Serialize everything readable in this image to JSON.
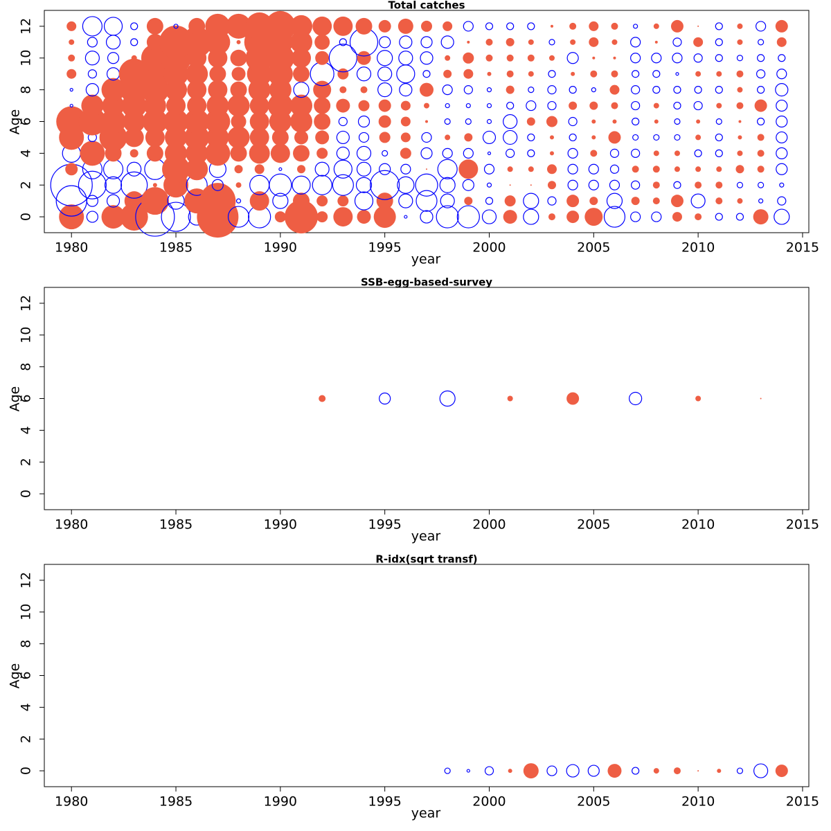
{
  "chart_data": [
    {
      "type": "bubble",
      "title": "Total catches",
      "xlabel": "year",
      "ylabel": "Age",
      "positive_color": "#ee5e44",
      "negative_color": "#0000ff",
      "xlim": [
        1978.7,
        2015.3
      ],
      "ylim": [
        -1,
        13
      ],
      "xticks": [
        1980,
        1985,
        1990,
        1995,
        2000,
        2005,
        2010,
        2015
      ],
      "yticks": [
        0,
        2,
        4,
        6,
        8,
        10,
        12
      ],
      "ages": [
        0,
        1,
        2,
        3,
        4,
        5,
        6,
        7,
        8,
        9,
        10,
        11,
        12
      ],
      "x": [
        1980,
        1981,
        1982,
        1983,
        1984,
        1985,
        1986,
        1987,
        1988,
        1989,
        1990,
        1991,
        1992,
        1993,
        1994,
        1995,
        1996,
        1997,
        1998,
        1999,
        2000,
        2001,
        2002,
        2003,
        2004,
        2005,
        2006,
        2007,
        2008,
        2009,
        2010,
        2011,
        2012,
        2013,
        2014
      ],
      "values": [
        [
          1.8,
          -2.2,
          -3.0,
          0.9,
          -1.3,
          1.8,
          2.2,
          -0.2,
          -0.2,
          0.7,
          0.5,
          0.4,
          0.7
        ],
        [
          -0.8,
          -0.8,
          -2.0,
          -1.4,
          1.8,
          -0.6,
          2.0,
          1.6,
          -0.9,
          -0.6,
          -1.0,
          -0.7,
          -1.4
        ],
        [
          1.7,
          -0.9,
          -1.2,
          -1.4,
          1.2,
          2.0,
          1.8,
          1.6,
          1.7,
          -0.9,
          -0.8,
          -1.0,
          -1.3
        ],
        [
          2.0,
          1.4,
          -1.9,
          -1.0,
          0.6,
          1.4,
          1.6,
          1.8,
          2.0,
          2.2,
          0.4,
          -0.5,
          -0.5
        ],
        [
          -2.8,
          2.0,
          0.3,
          -1.5,
          1.2,
          1.4,
          1.8,
          1.6,
          2.0,
          2.2,
          2.0,
          1.2,
          1.2
        ],
        [
          -2.1,
          -1.2,
          1.8,
          2.0,
          1.6,
          1.6,
          1.8,
          1.4,
          1.6,
          1.8,
          2.2,
          2.4,
          -0.3
        ],
        [
          -1.2,
          1.8,
          -1.5,
          1.6,
          1.6,
          1.8,
          1.8,
          1.4,
          1.4,
          1.6,
          1.4,
          2.2,
          1.2
        ],
        [
          3.0,
          2.6,
          -0.8,
          -1.2,
          1.8,
          1.6,
          1.8,
          1.6,
          1.4,
          1.2,
          1.4,
          1.8,
          1.8
        ],
        [
          -1.5,
          -0.3,
          0.4,
          0.6,
          1.2,
          1.6,
          1.1,
          1.6,
          1.2,
          1.0,
          1.2,
          0.3,
          1.8
        ],
        [
          -1.6,
          1.4,
          -1.4,
          0.7,
          1.5,
          1.4,
          1.4,
          1.4,
          1.6,
          1.8,
          2.0,
          2.2,
          2.0
        ],
        [
          0.8,
          -1.1,
          -1.6,
          -0.2,
          1.4,
          1.2,
          1.6,
          1.8,
          1.6,
          1.8,
          2.0,
          1.8,
          2.2
        ],
        [
          2.4,
          1.2,
          -1.3,
          0.6,
          1.2,
          1.0,
          1.6,
          1.6,
          -1.1,
          1.2,
          1.4,
          1.6,
          1.6
        ],
        [
          0.8,
          0.8,
          -1.4,
          -1.0,
          0.8,
          1.0,
          1.2,
          1.2,
          1.3,
          -1.7,
          1.0,
          1.1,
          1.4
        ],
        [
          1.4,
          0.8,
          -1.5,
          -1.3,
          -0.9,
          -0.9,
          -0.6,
          1.0,
          0.5,
          0.8,
          -2.0,
          -0.5,
          1.4
        ],
        [
          1.0,
          -1.3,
          -1.1,
          -1.0,
          -1.0,
          -0.7,
          -0.8,
          0.8,
          0.5,
          -1.0,
          1.0,
          -2.0,
          1.2
        ],
        [
          1.6,
          1.2,
          -2.1,
          -0.8,
          -0.4,
          0.8,
          0.9,
          0.9,
          -1.0,
          -1.0,
          -1.1,
          -0.8,
          0.9
        ],
        [
          -0.2,
          -1.0,
          -1.2,
          -0.7,
          0.8,
          0.7,
          0.7,
          0.7,
          -0.9,
          -1.3,
          -1.0,
          -0.9,
          1.1
        ],
        [
          -0.9,
          -1.5,
          -1.6,
          0.1,
          -0.8,
          -0.7,
          0.2,
          0.4,
          1.0,
          -0.5,
          -0.9,
          -0.8,
          0.8
        ],
        [
          -1.6,
          -1.0,
          -1.1,
          -1.4,
          -0.7,
          0.4,
          -0.4,
          -0.3,
          -0.7,
          0.6,
          0.4,
          -0.9,
          0.7
        ],
        [
          -1.6,
          0.6,
          -0.8,
          1.4,
          -0.7,
          0.6,
          -0.4,
          -0.3,
          -0.6,
          0.7,
          0.8,
          0.2,
          -0.7
        ],
        [
          -1.0,
          -0.5,
          -0.3,
          -0.7,
          -0.2,
          -0.9,
          -0.3,
          -0.3,
          -0.3,
          0.3,
          0.5,
          0.5,
          -0.5
        ],
        [
          1.0,
          0.8,
          0.1,
          0.4,
          -0.6,
          -1.0,
          -1.0,
          -0.5,
          0.6,
          0.5,
          0.5,
          0.6,
          -0.5
        ],
        [
          -1.1,
          -1.1,
          0.1,
          0.4,
          -0.5,
          -0.5,
          0.6,
          -0.7,
          -0.4,
          0.4,
          0.5,
          0.4,
          -0.5
        ],
        [
          0.5,
          -0.6,
          0.6,
          0.7,
          0.3,
          0.3,
          0.8,
          -0.6,
          -0.6,
          -0.5,
          0.4,
          -0.4,
          0.2
        ],
        [
          0.9,
          0.9,
          -0.7,
          -0.7,
          -0.7,
          -0.5,
          -0.6,
          0.6,
          -0.5,
          0.3,
          -0.8,
          0.4,
          0.5
        ],
        [
          1.3,
          0.6,
          -0.7,
          -0.7,
          0.5,
          0.3,
          0.3,
          0.6,
          -0.3,
          0.5,
          0.2,
          0.7,
          0.7
        ],
        [
          -1.5,
          -1.1,
          -0.7,
          -0.6,
          -0.6,
          0.9,
          0.3,
          0.5,
          0.7,
          0.5,
          0.2,
          0.4,
          0.5
        ],
        [
          -0.7,
          0.6,
          -0.6,
          0.5,
          -0.6,
          -0.4,
          -0.5,
          -0.6,
          -0.6,
          -0.5,
          -0.7,
          -0.7,
          -0.3
        ],
        [
          -0.7,
          0.5,
          0.5,
          0.5,
          0.4,
          -0.4,
          0.3,
          0.4,
          -0.5,
          -0.5,
          -0.7,
          0.2,
          0.4
        ],
        [
          0.7,
          0.9,
          -0.5,
          0.4,
          0.4,
          -0.4,
          -0.4,
          -0.5,
          -0.5,
          -0.2,
          -0.7,
          -0.6,
          0.9
        ],
        [
          0.5,
          -1.0,
          0.5,
          0.4,
          -0.5,
          0.4,
          0.3,
          -0.6,
          -0.5,
          0.4,
          -0.6,
          0.7,
          0.1
        ],
        [
          -0.5,
          0.5,
          0.5,
          0.4,
          -0.5,
          -0.5,
          -0.4,
          0.4,
          -0.5,
          0.4,
          -0.5,
          -0.5,
          -0.5
        ],
        [
          -0.5,
          0.4,
          -0.4,
          0.6,
          0.4,
          0.3,
          0.2,
          0.5,
          0.4,
          0.5,
          -0.4,
          0.4,
          0.4
        ],
        [
          1.1,
          -0.3,
          -0.4,
          0.5,
          0.5,
          0.5,
          -0.5,
          0.9,
          -0.5,
          -0.6,
          -0.5,
          -0.4,
          -0.7
        ],
        [
          -1.1,
          -0.6,
          -0.3,
          -0.8,
          -0.8,
          -0.8,
          -0.8,
          -0.8,
          -0.9,
          -0.7,
          -0.5,
          0.7,
          0.9
        ]
      ]
    },
    {
      "type": "bubble",
      "title": "SSB-egg-based-survey",
      "xlabel": "year",
      "ylabel": "Age",
      "positive_color": "#ee5e44",
      "negative_color": "#0000ff",
      "xlim": [
        1978.7,
        2015.3
      ],
      "ylim": [
        -1,
        13
      ],
      "xticks": [
        1980,
        1985,
        1990,
        1995,
        2000,
        2005,
        2010,
        2015
      ],
      "yticks": [
        0,
        2,
        4,
        6,
        8,
        10,
        12
      ],
      "ages": [
        6
      ],
      "x": [
        1992,
        1995,
        1998,
        2001,
        2004,
        2007,
        2010,
        2013
      ],
      "values": [
        [
          0.5
        ],
        [
          -0.8
        ],
        [
          -1.1
        ],
        [
          0.4
        ],
        [
          0.9
        ],
        [
          -0.9
        ],
        [
          0.4
        ],
        [
          0.1
        ]
      ]
    },
    {
      "type": "bubble",
      "title": "R-idx(sqrt transf)",
      "xlabel": "year",
      "ylabel": "Age",
      "positive_color": "#ee5e44",
      "negative_color": "#0000ff",
      "xlim": [
        1978.7,
        2015.3
      ],
      "ylim": [
        -1,
        13
      ],
      "xticks": [
        1980,
        1985,
        1990,
        1995,
        2000,
        2005,
        2010,
        2015
      ],
      "yticks": [
        0,
        2,
        4,
        6,
        8,
        10,
        12
      ],
      "ages": [
        0
      ],
      "x": [
        1998,
        1999,
        2000,
        2001,
        2002,
        2003,
        2004,
        2005,
        2006,
        2007,
        2008,
        2009,
        2010,
        2011,
        2012,
        2013,
        2014
      ],
      "values": [
        [
          -0.4
        ],
        [
          -0.2
        ],
        [
          -0.6
        ],
        [
          0.3
        ],
        [
          1.1
        ],
        [
          -0.7
        ],
        [
          -0.9
        ],
        [
          -0.8
        ],
        [
          1.0
        ],
        [
          -0.5
        ],
        [
          0.4
        ],
        [
          0.5
        ],
        [
          0.1
        ],
        [
          0.3
        ],
        [
          -0.4
        ],
        [
          -1.0
        ],
        [
          0.9
        ]
      ]
    }
  ]
}
